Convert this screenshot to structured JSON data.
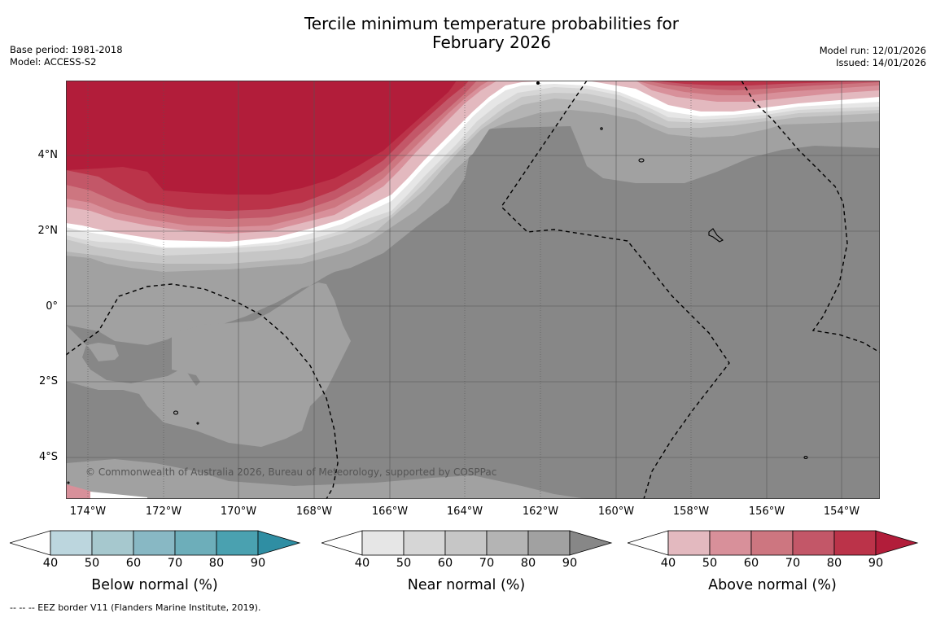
{
  "title": {
    "line1": "Tercile minimum temperature probabilities for",
    "line2": "February 2026"
  },
  "meta_left": {
    "base_period": "Base period: 1981-2018",
    "model": "Model: ACCESS-S2"
  },
  "meta_right": {
    "model_run": "Model run: 12/01/2026",
    "issued": "Issued: 14/01/2026"
  },
  "map": {
    "lat_labels": [
      "4°N",
      "2°N",
      "0°",
      "2°S",
      "4°S"
    ],
    "lon_labels": [
      "174°W",
      "172°W",
      "170°W",
      "168°W",
      "166°W",
      "164°W",
      "162°W",
      "160°W",
      "158°W",
      "156°W",
      "154°W"
    ],
    "copyright": "© Commonwealth of Australia 2026, Bureau of Meteorology, supported by COSPPac"
  },
  "colorbars": [
    {
      "title": "Below normal (%)",
      "ticks": [
        "40",
        "50",
        "60",
        "70",
        "80",
        "90"
      ],
      "colors": [
        "#ffffff",
        "#bcd6de",
        "#a6c8ce",
        "#88b8c4",
        "#6daeba",
        "#4aa1b0",
        "#2f8ea3"
      ]
    },
    {
      "title": "Near normal (%)",
      "ticks": [
        "40",
        "50",
        "60",
        "70",
        "80",
        "90"
      ],
      "colors": [
        "#ffffff",
        "#e6e6e6",
        "#d6d6d6",
        "#c6c6c6",
        "#b4b4b4",
        "#a1a1a1",
        "#878787"
      ]
    },
    {
      "title": "Above normal (%)",
      "ticks": [
        "40",
        "50",
        "60",
        "70",
        "80",
        "90"
      ],
      "colors": [
        "#ffffff",
        "#e3b9bf",
        "#d8909a",
        "#cd7680",
        "#c35768",
        "#bb3349",
        "#b21d3a"
      ]
    }
  ],
  "footer": "--  --  -- EEZ border V11 (Flanders Marine Institute, 2019)."
}
